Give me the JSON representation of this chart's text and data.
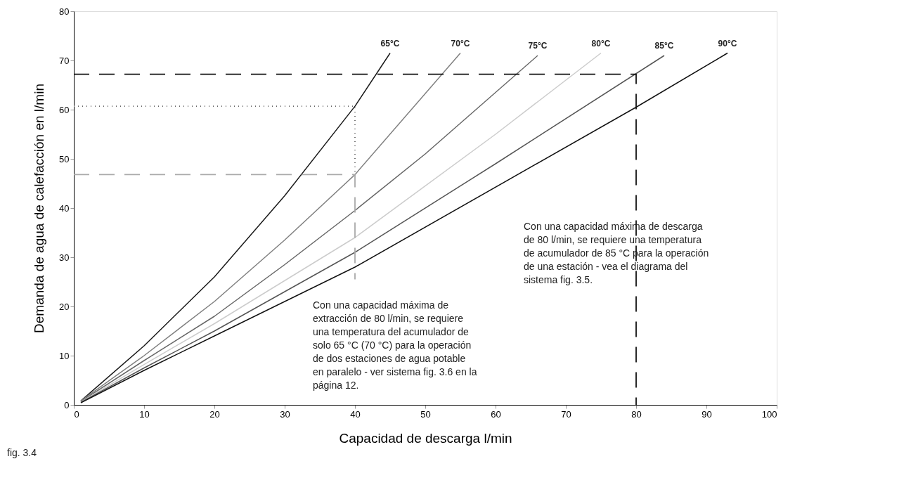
{
  "chart_data": {
    "type": "line",
    "xlabel": "Capacidad de descarga l/min",
    "ylabel": "Demanda de agua de calefacción en l/min",
    "xlim": [
      0,
      100
    ],
    "ylim": [
      0,
      80
    ],
    "xticks": [
      0,
      10,
      20,
      30,
      40,
      50,
      60,
      70,
      80,
      90,
      100
    ],
    "yticks": [
      0,
      10,
      20,
      30,
      40,
      50,
      60,
      70,
      80
    ],
    "grid": false,
    "legend": false,
    "marker": "none",
    "series": [
      {
        "name": "65°C",
        "color": "#1a1a1a",
        "x": [
          1,
          10,
          20,
          30,
          40,
          45
        ],
        "values": [
          0.8,
          12,
          26,
          42.5,
          60.7,
          71.5
        ]
      },
      {
        "name": "70°C",
        "color": "#808080",
        "x": [
          1,
          10,
          20,
          30,
          40,
          55
        ],
        "values": [
          0.8,
          10,
          21,
          33.5,
          46.8,
          71.5
        ]
      },
      {
        "name": "75°C",
        "color": "#666666",
        "x": [
          1,
          10,
          20,
          30,
          40,
          50,
          66
        ],
        "values": [
          0.7,
          9,
          18,
          28.5,
          39.5,
          51,
          71
        ]
      },
      {
        "name": "80°C",
        "color": "#cccccc",
        "x": [
          1,
          10,
          20,
          40,
          60,
          75
        ],
        "values": [
          0.6,
          8.2,
          16.5,
          34,
          55,
          71.5
        ]
      },
      {
        "name": "85°C",
        "color": "#555555",
        "x": [
          1,
          10,
          20,
          40,
          60,
          84
        ],
        "values": [
          0.5,
          7.5,
          15,
          31,
          49,
          71
        ]
      },
      {
        "name": "90°C",
        "color": "#111111",
        "x": [
          1,
          10,
          20,
          40,
          80,
          93
        ],
        "values": [
          0.4,
          7,
          14,
          28,
          60.5,
          71.5
        ]
      },
      {
        "color": "#111111",
        "line_style": "dashed",
        "x": [
          0,
          80,
          80
        ],
        "values": [
          67.2,
          67.2,
          0
        ]
      },
      {
        "color": "#666666",
        "line_style": "dotted",
        "x": [
          0,
          40,
          40
        ],
        "values": [
          60.7,
          60.7,
          46.8
        ]
      },
      {
        "color": "#aaaaaa",
        "line_style": "dashed",
        "x": [
          0,
          40,
          40
        ],
        "values": [
          46.8,
          46.8,
          25.5
        ]
      }
    ],
    "annotations": [
      "Con una capacidad máxima de\nextracción de 80 l/min, se requiere\nuna temperatura del acumulador de\nsolo 65 °C (70 °C) para la operación\nde dos estaciones de agua potable\nen paralelo - ver sistema fig. 3.6 en la\npágina 12.",
      "Con una capacidad máxima de descarga\nde 80 l/min, se requiere una temperatura\nde acumulador de 85 °C para la operación\nde una estación - vea el diagrama del\nsistema fig. 3.5.",
      "fig. 3.4"
    ]
  }
}
